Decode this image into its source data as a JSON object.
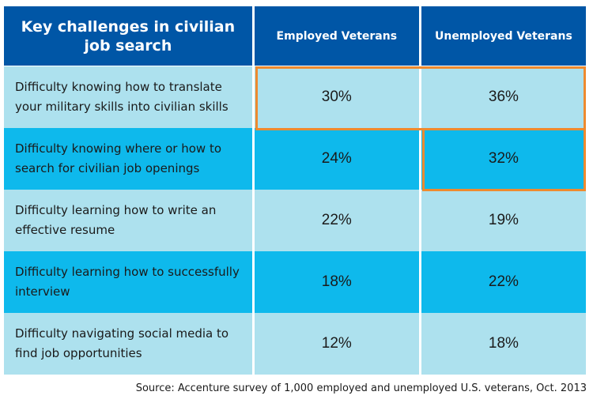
{
  "table": {
    "headers": [
      "Key challenges in civilian job search",
      "Employed Veterans",
      "Unemployed Veterans"
    ],
    "rows": [
      {
        "label": "Difficulty knowing how to translate your military skills into civilian skills",
        "employed": "30%",
        "unemployed": "36%"
      },
      {
        "label": "Difficulty knowing where or how to search for civilian job openings",
        "employed": "24%",
        "unemployed": "32%"
      },
      {
        "label": "Difficulty learning how to write an effective resume",
        "employed": "22%",
        "unemployed": "19%"
      },
      {
        "label": "Difficulty learning how to successfully interview",
        "employed": "18%",
        "unemployed": "22%"
      },
      {
        "label": "Difficulty navigating social media to find job opportunities",
        "employed": "12%",
        "unemployed": "18%"
      }
    ],
    "highlighted": [
      "row 1: Employed Veterans + Unemployed Veterans",
      "row 2: Unemployed Veterans"
    ]
  },
  "colors": {
    "header_bg": "#0056a6",
    "row_light": "#ade1ee",
    "row_dark": "#0eb9ec",
    "highlight_border": "#ee8a2f"
  },
  "source": "Source: Accenture survey of 1,000 employed and unemployed U.S. veterans, Oct. 2013",
  "chart_data": {
    "type": "table",
    "title": "Key challenges in civilian job search",
    "columns": [
      "Key challenges in civilian job search",
      "Employed Veterans",
      "Unemployed Veterans"
    ],
    "categories": [
      "Difficulty knowing how to translate your military skills into civilian skills",
      "Difficulty knowing where or how to search for civilian job openings",
      "Difficulty learning how to write an effective resume",
      "Difficulty learning how to successfully interview",
      "Difficulty navigating social media to find job opportunities"
    ],
    "series": [
      {
        "name": "Employed Veterans",
        "values": [
          30,
          24,
          22,
          18,
          12
        ],
        "unit": "%"
      },
      {
        "name": "Unemployed Veterans",
        "values": [
          36,
          32,
          19,
          22,
          18
        ],
        "unit": "%"
      }
    ],
    "annotations": [
      "Orange outline around row 1 (both values)",
      "Orange outline around row 2 Unemployed Veterans value"
    ],
    "source": "Source: Accenture survey of 1,000 employed and unemployed U.S. veterans, Oct. 2013"
  }
}
